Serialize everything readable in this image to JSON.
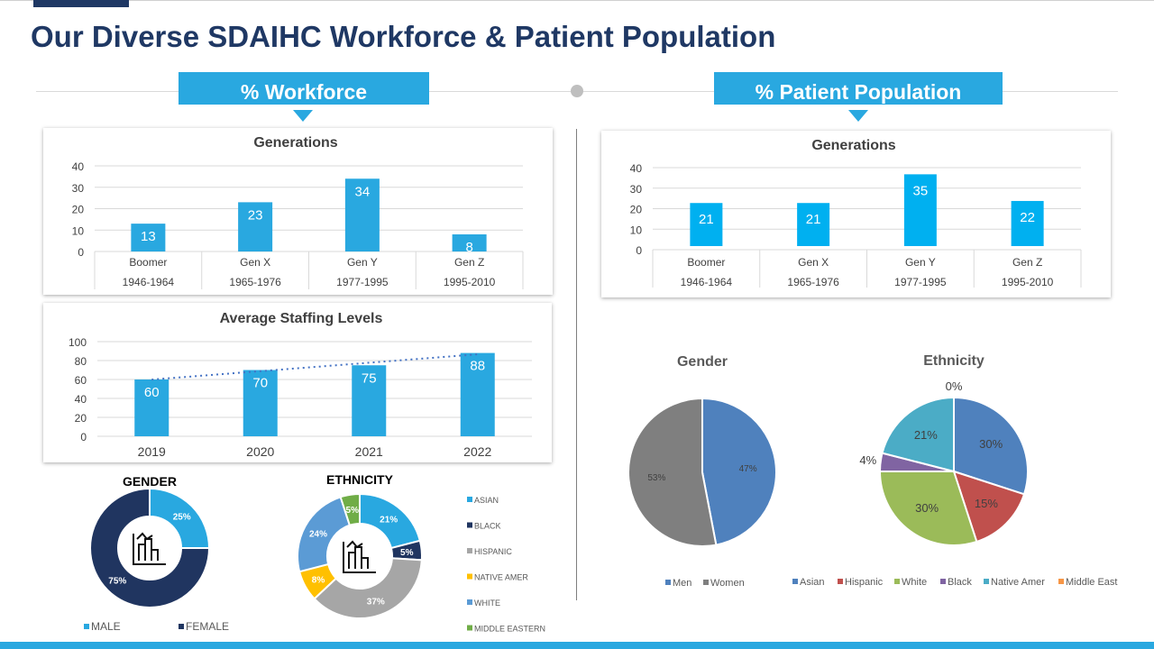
{
  "title": "Our Diverse SDAIHC Workforce & Patient Population",
  "banners": {
    "workforce": "% Workforce",
    "patient": "% Patient Population"
  },
  "colors": {
    "accent": "#29a8e0",
    "navy": "#1f3864"
  },
  "chart_data": [
    {
      "id": "wf_gen",
      "type": "bar",
      "title": "Generations",
      "categories": [
        "Boomer",
        "Gen X",
        "Gen Y",
        "Gen Z"
      ],
      "sublabels": [
        "1946-1964",
        "1965-1976",
        "1977-1995",
        "1995-2010"
      ],
      "values": [
        13,
        23,
        34,
        8
      ],
      "ylim": [
        0,
        40
      ],
      "yticks": [
        "0",
        "10",
        "20",
        "30",
        "40"
      ],
      "color": "#29a8e0"
    },
    {
      "id": "wf_staff",
      "type": "bar",
      "title": "Average  Staffing Levels",
      "categories": [
        "2019",
        "2020",
        "2021",
        "2022"
      ],
      "values": [
        60,
        70,
        75,
        88
      ],
      "ylim": [
        0,
        100
      ],
      "yticks": [
        "0",
        "20",
        "40",
        "60",
        "80",
        "100"
      ],
      "trendline": "linear",
      "color": "#29a8e0"
    },
    {
      "id": "wf_gender",
      "type": "pie",
      "donut": true,
      "title": "GENDER",
      "labels": [
        "MALE",
        "FEMALE"
      ],
      "values": [
        25,
        75
      ],
      "value_labels": [
        "25%",
        "75%"
      ],
      "colors": [
        "#29a8e0",
        "#203560"
      ]
    },
    {
      "id": "wf_eth",
      "type": "pie",
      "donut": true,
      "title": "ETHNICITY",
      "labels": [
        "ASIAN",
        "BLACK",
        "HISPANIC",
        "NATIVE  AMER",
        "WHITE",
        "MIDDLE  EASTERN"
      ],
      "values": [
        21,
        5,
        37,
        8,
        24,
        5
      ],
      "value_labels": [
        "21%",
        "5%",
        "37%",
        "8%",
        "24%",
        "5%"
      ],
      "colors": [
        "#29a8e0",
        "#203560",
        "#a6a6a6",
        "#ffc000",
        "#5b9bd5",
        "#70ad47"
      ]
    },
    {
      "id": "pt_gen",
      "type": "bar",
      "title": "Generations",
      "categories": [
        "Boomer",
        "Gen X",
        "Gen Y",
        "Gen Z"
      ],
      "sublabels": [
        "1946-1964",
        "1965-1976",
        "1977-1995",
        "1995-2010"
      ],
      "values": [
        21,
        21,
        35,
        22
      ],
      "ylim": [
        0,
        40
      ],
      "yticks": [
        "0",
        "10",
        "20",
        "30",
        "40"
      ],
      "color": "#00b0f0"
    },
    {
      "id": "pt_gender",
      "type": "pie",
      "title": "Gender",
      "labels": [
        "Men",
        "Women"
      ],
      "values": [
        47,
        53
      ],
      "value_labels": [
        "47%",
        "53%"
      ],
      "colors": [
        "#4f81bd",
        "#7f7f7f"
      ]
    },
    {
      "id": "pt_eth",
      "type": "pie",
      "title": "Ethnicity",
      "labels": [
        "Asian",
        "Hispanic",
        "White",
        "Black",
        "Native Amer",
        "Middle East"
      ],
      "values": [
        30,
        15,
        30,
        4,
        21,
        0
      ],
      "value_labels": [
        "30%",
        "15%",
        "30%",
        "4%",
        "21%",
        "0%"
      ],
      "colors": [
        "#4f81bd",
        "#c0504d",
        "#9bbb59",
        "#8064a2",
        "#4bacc6",
        "#f79646"
      ]
    }
  ]
}
